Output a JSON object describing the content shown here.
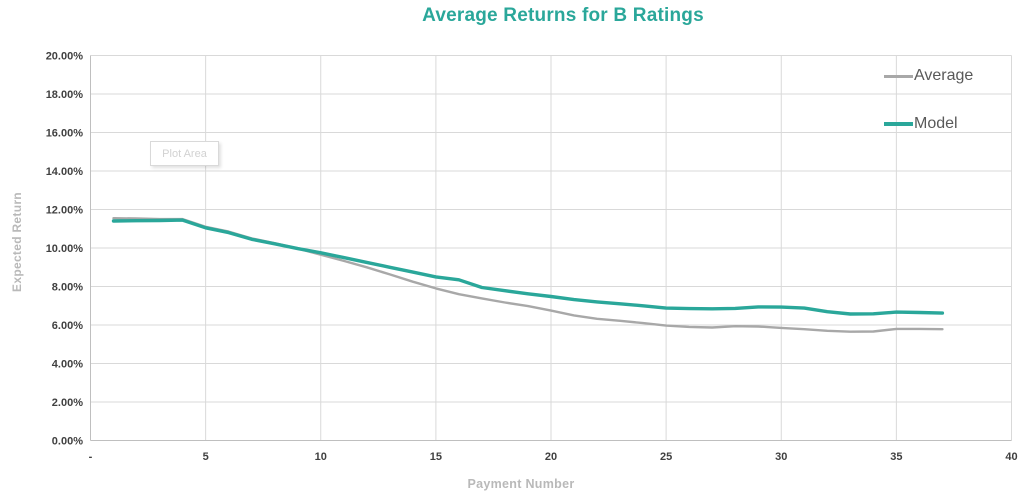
{
  "title": {
    "text": "Average Returns for B Ratings"
  },
  "tooltip": {
    "label": "Plot Area"
  },
  "colors": {
    "background": "#ffffff",
    "accent_teal": "#2aa79a",
    "series_gray": "#a8a8a8",
    "gridline": "#d9d9d9",
    "axis_line": "#bfbfbf",
    "tick_text": "#404040",
    "axis_title_text": "#b9b9b9",
    "legend_text": "#595959",
    "tooltip_text": "#d2d2d2",
    "tooltip_border": "#d9d9d9"
  },
  "chart_data": {
    "type": "line",
    "title": "Average Returns for B Ratings",
    "xlabel": "Payment Number",
    "ylabel": "Expected Return",
    "xlim": [
      0,
      40
    ],
    "ylim": [
      0,
      20
    ],
    "grid": true,
    "legend_position": "inside-top-right",
    "x_ticks": {
      "values": [
        0,
        5,
        10,
        15,
        20,
        25,
        30,
        35,
        40
      ],
      "labels": [
        "-",
        "5",
        "10",
        "15",
        "20",
        "25",
        "30",
        "35",
        "40"
      ]
    },
    "y_ticks": {
      "values": [
        0,
        2,
        4,
        6,
        8,
        10,
        12,
        14,
        16,
        18,
        20
      ],
      "labels": [
        "0.00%",
        "2.00%",
        "4.00%",
        "6.00%",
        "8.00%",
        "10.00%",
        "12.00%",
        "14.00%",
        "16.00%",
        "18.00%",
        "20.00%"
      ]
    },
    "x": [
      1,
      2,
      3,
      4,
      5,
      6,
      7,
      8,
      9,
      10,
      11,
      12,
      13,
      14,
      15,
      16,
      17,
      18,
      19,
      20,
      21,
      22,
      23,
      24,
      25,
      26,
      27,
      28,
      29,
      30,
      31,
      32,
      33,
      34,
      35,
      36,
      37
    ],
    "series": [
      {
        "name": "Average",
        "color": "#a8a8a8",
        "stroke_width": 2.4,
        "unit": "percent",
        "values": [
          11.55,
          11.53,
          11.5,
          11.5,
          11.1,
          10.85,
          10.5,
          10.25,
          9.97,
          9.65,
          9.33,
          9.0,
          8.63,
          8.25,
          7.9,
          7.6,
          7.38,
          7.17,
          6.98,
          6.75,
          6.5,
          6.32,
          6.22,
          6.1,
          5.97,
          5.9,
          5.87,
          5.94,
          5.92,
          5.85,
          5.78,
          5.7,
          5.65,
          5.66,
          5.8,
          5.8,
          5.78
        ]
      },
      {
        "name": "Model",
        "color": "#2aa79a",
        "stroke_width": 3.4,
        "unit": "percent",
        "values": [
          11.4,
          11.42,
          11.43,
          11.45,
          11.05,
          10.8,
          10.45,
          10.22,
          9.97,
          9.75,
          9.5,
          9.25,
          9.0,
          8.75,
          8.5,
          8.35,
          7.95,
          7.78,
          7.62,
          7.48,
          7.32,
          7.2,
          7.1,
          7.0,
          6.88,
          6.85,
          6.84,
          6.86,
          6.94,
          6.93,
          6.88,
          6.69,
          6.57,
          6.58,
          6.67,
          6.65,
          6.62
        ]
      }
    ]
  }
}
